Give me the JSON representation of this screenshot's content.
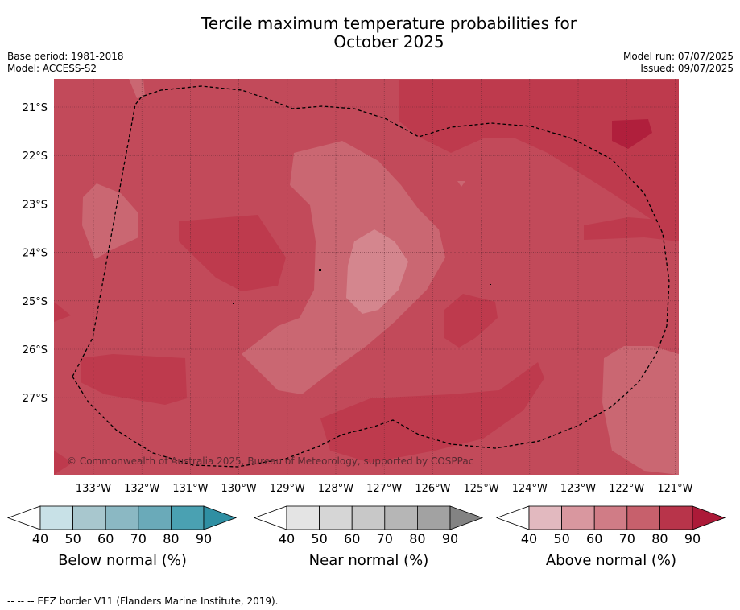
{
  "header": {
    "title_line1": "Tercile maximum temperature probabilities for",
    "title_line2": "October 2025",
    "base_period": "Base period: 1981-2018",
    "model": "Model: ACCESS-S2",
    "model_run": "Model run: 07/07/2025",
    "issued": "Issued: 09/07/2025"
  },
  "map": {
    "lat_labels": [
      "21°S",
      "22°S",
      "23°S",
      "24°S",
      "25°S",
      "26°S",
      "27°S"
    ],
    "lon_labels": [
      "133°W",
      "132°W",
      "131°W",
      "130°W",
      "129°W",
      "128°W",
      "127°W",
      "126°W",
      "125°W",
      "124°W",
      "123°W",
      "122°W",
      "121°W"
    ],
    "copyright": "© Commonwealth of Australia 2025, Bureau of Meteorology, supported by COSPPac",
    "colors": {
      "above_90": "#b01f3c",
      "above_80": "#be3a4d",
      "above_70": "#c24a5a",
      "above_60": "#ca6772",
      "above_50": "#d4868e",
      "border": "#000000"
    }
  },
  "colorbars": [
    {
      "name": "below",
      "label": "Below normal (%)",
      "ticks": [
        "40",
        "50",
        "60",
        "70",
        "80",
        "90"
      ],
      "colors": [
        "#ffffff",
        "#c8e1e7",
        "#a8c7ce",
        "#8bb8c3",
        "#6aaab9",
        "#4aa1b2",
        "#2f8fa3"
      ]
    },
    {
      "name": "near",
      "label": "Near normal (%)",
      "ticks": [
        "40",
        "50",
        "60",
        "70",
        "80",
        "90"
      ],
      "colors": [
        "#ffffff",
        "#e4e4e4",
        "#d6d6d6",
        "#c8c8c8",
        "#b6b6b6",
        "#a2a2a2",
        "#838383"
      ]
    },
    {
      "name": "above",
      "label": "Above normal (%)",
      "ticks": [
        "40",
        "50",
        "60",
        "70",
        "80",
        "90"
      ],
      "colors": [
        "#ffffff",
        "#e2b9bf",
        "#d9979f",
        "#d07c86",
        "#c7606c",
        "#b8344a",
        "#ac1a38"
      ]
    }
  ],
  "footnote": "--  --  -- EEZ border V11 (Flanders Marine Institute, 2019)."
}
